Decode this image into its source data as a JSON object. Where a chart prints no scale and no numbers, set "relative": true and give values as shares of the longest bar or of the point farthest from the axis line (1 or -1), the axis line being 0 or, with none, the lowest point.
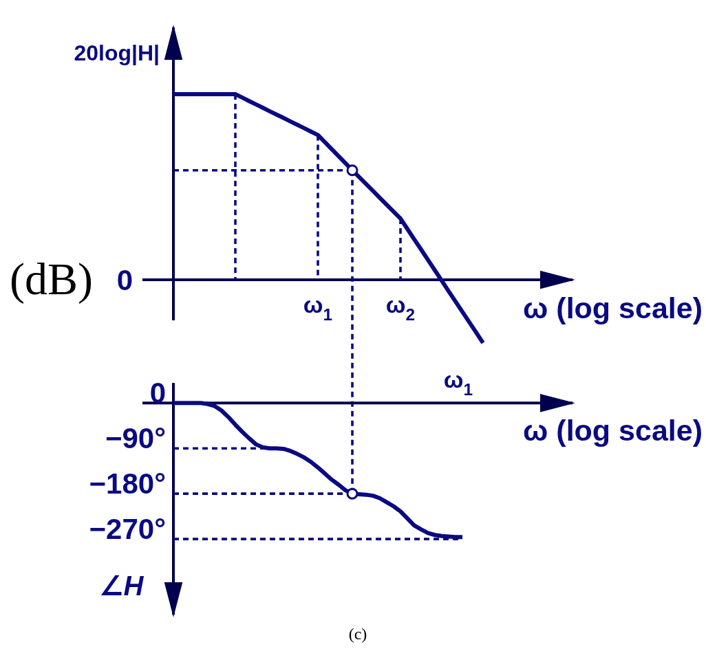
{
  "chart_data": [
    {
      "type": "line",
      "ylabel": "20log|H|",
      "xlabel": "ω (log scale)",
      "annotations": [
        "(dB)",
        "0"
      ],
      "relative": true,
      "categories": [
        null,
        null,
        null,
        null,
        null,
        null,
        null,
        null,
        null,
        null,
        null,
        null,
        null,
        null,
        null,
        null,
        null,
        null,
        null,
        null,
        null,
        "ω$_{1}$",
        null,
        null,
        null,
        null,
        null,
        null,
        null,
        null,
        null,
        null,
        null,
        "ω$_{2}$",
        null,
        null,
        null,
        null,
        null,
        null,
        null,
        null,
        null,
        null,
        null,
        null
      ],
      "ref_lines": [
        {
          "axis": "x",
          "value": "ω$_{1}$",
          "line_style": "dashed",
          "color": "#0a0a82"
        },
        {
          "axis": "x",
          "value": "ω$_{2}$",
          "line_style": "dashed",
          "color": "#0a0a82"
        },
        {
          "axis": "y",
          "value": 0.59,
          "line_style": "dashed",
          "color": "#0a0a82"
        }
      ],
      "series": [
        {
          "color": "#0a0a82",
          "values": [
            1,
            1,
            1,
            1,
            1,
            1,
            1,
            1,
            1,
            1,
            0.982,
            0.963,
            0.945,
            0.927,
            0.908,
            0.89,
            0.872,
            0.853,
            0.835,
            0.817,
            0.798,
            0.78,
            0.742,
            0.704,
            0.666,
            0.628,
            0.59,
            0.553,
            0.516,
            0.479,
            0.441,
            0.404,
            0.367,
            0.33,
            0.274,
            0.218,
            0.163,
            0.107,
            0.051,
            -0.005,
            -0.062,
            -0.117,
            -0.173,
            -0.228,
            -0.284,
            -0.34
          ]
        },
        {
          "type": "scatter",
          "marker": "circle",
          "color": "#0a0a82",
          "values": [
            null,
            null,
            null,
            null,
            null,
            null,
            null,
            null,
            null,
            null,
            null,
            null,
            null,
            null,
            null,
            null,
            null,
            null,
            null,
            null,
            null,
            null,
            null,
            null,
            null,
            null,
            0.59,
            null,
            null,
            null,
            null,
            null,
            null,
            null,
            null,
            null,
            null,
            null,
            null,
            null,
            null,
            null,
            null,
            null,
            null,
            null
          ]
        }
      ]
    },
    {
      "type": "line",
      "ylabel": "∠H",
      "xlabel": "ω (log scale)",
      "annotations": [
        "ω$_{1}$",
        "(c)"
      ],
      "ylim": [
        -420,
        40
      ],
      "yticks": [
        0,
        {
          "value": -90,
          "label": "−90°"
        },
        {
          "value": -180,
          "label": "−180°"
        },
        {
          "value": -270,
          "label": "−270°"
        }
      ],
      "tick_labels": "y",
      "categories": [
        null,
        null,
        null,
        null,
        null,
        null,
        null,
        null,
        null,
        null,
        null,
        null,
        null,
        null,
        null,
        null,
        null,
        null,
        null,
        null,
        null,
        null,
        null,
        null,
        null,
        null,
        null,
        null,
        null,
        null,
        null,
        null,
        null,
        null,
        null,
        null,
        null,
        null,
        null,
        null,
        null,
        null,
        null,
        null,
        null,
        null
      ],
      "ref_lines": [
        {
          "axis": "y",
          "value": 0,
          "color": "#00004e"
        },
        {
          "axis": "y",
          "value": -90,
          "line_style": "dashed",
          "color": "#0a0a82"
        },
        {
          "axis": "y",
          "value": -180,
          "line_style": "dashed",
          "color": "#0a0a82"
        },
        {
          "axis": "y",
          "value": -270,
          "line_style": "dashed",
          "color": "#0a0a82"
        }
      ],
      "series": [
        {
          "color": "#0a0a82",
          "values": [
            0,
            0,
            0,
            0,
            0,
            -2,
            -6,
            -15,
            -28,
            -43,
            -57,
            -70,
            -82,
            -88,
            -90,
            -90,
            -91,
            -95,
            -101,
            -108,
            -117,
            -128,
            -140,
            -152,
            -162,
            -173,
            -180,
            -181,
            -182,
            -184,
            -189,
            -197,
            -205,
            -215,
            -229,
            -243,
            -251,
            -258,
            -262,
            -264,
            -265,
            -266,
            -266,
            null,
            null,
            null
          ]
        },
        {
          "type": "scatter",
          "marker": "circle",
          "color": "#0a0a82",
          "values": [
            null,
            null,
            null,
            null,
            null,
            null,
            null,
            null,
            null,
            null,
            null,
            null,
            null,
            null,
            null,
            null,
            null,
            null,
            null,
            null,
            null,
            null,
            null,
            null,
            null,
            null,
            -180,
            null,
            null,
            null,
            null,
            null,
            null,
            null,
            null,
            null,
            null,
            null,
            null,
            null,
            null,
            null,
            null,
            null,
            null,
            null
          ]
        }
      ]
    }
  ]
}
